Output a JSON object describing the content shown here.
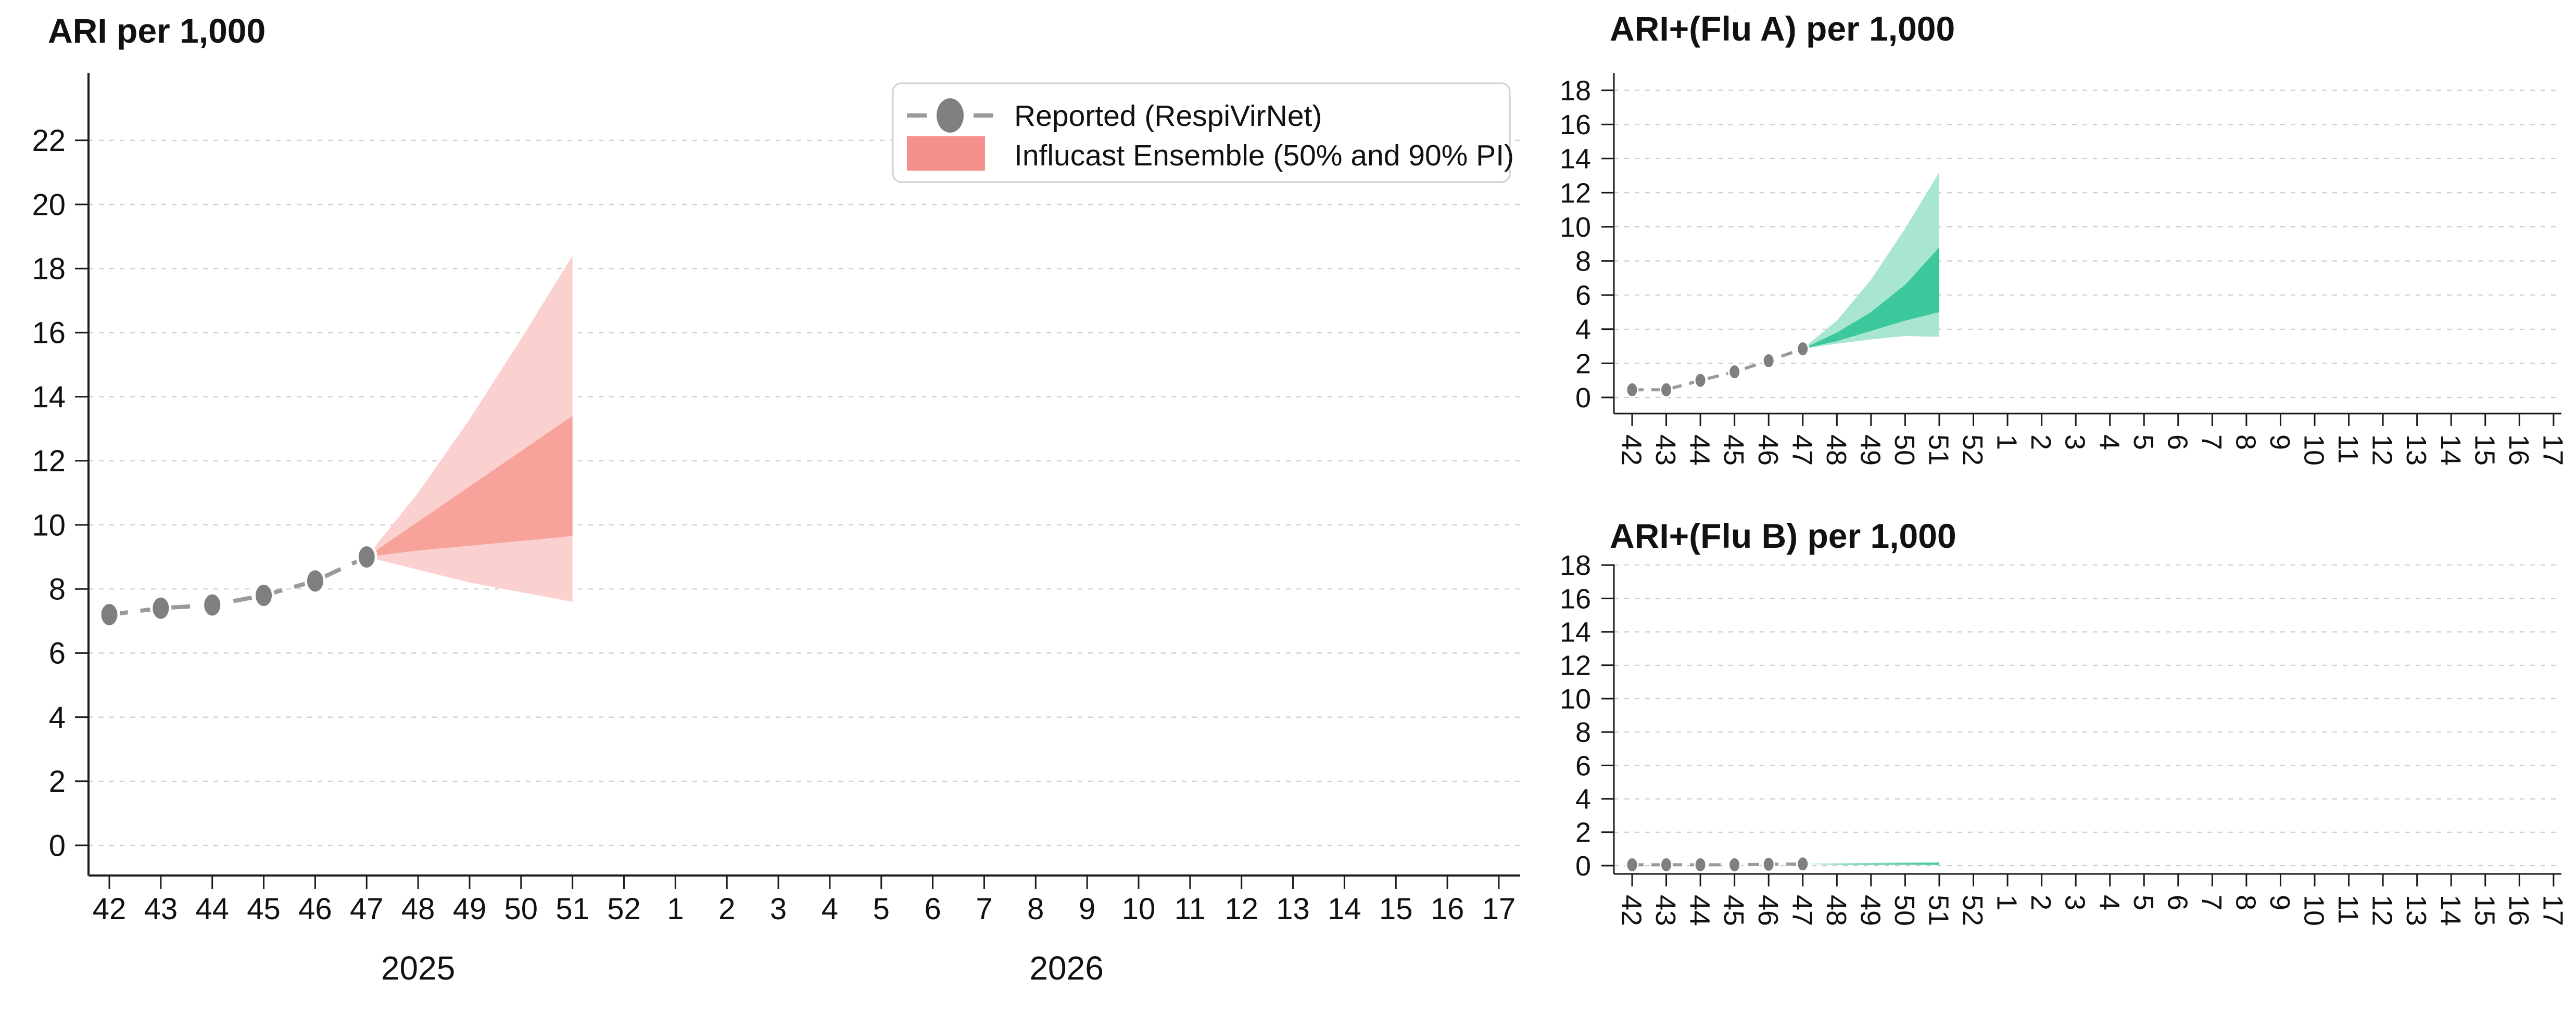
{
  "page": {
    "background": "#ffffff"
  },
  "colors": {
    "reported_dot": "#7f7f7f",
    "reported_line": "#9a9a9a",
    "grid": "#cccccc",
    "axis": "#1a1a1a",
    "tick_text": "#111111",
    "red_band_90": "#fbd1cf",
    "red_band_50": "#f7a29a",
    "legend_swatch": "#f5918c",
    "green_band_90": "#a9e6d0",
    "green_band_50": "#3cc79d"
  },
  "legend": {
    "items": [
      {
        "marker": "dashed-line-with-dot",
        "label": "Reported (RespiVirNet)"
      },
      {
        "marker": "filled-rect",
        "label": "Influcast Ensemble (50% and 90% PI)"
      }
    ]
  },
  "chart_data": [
    {
      "type": "line",
      "title": "ARI per 1,000",
      "categories": [
        "42",
        "43",
        "44",
        "45",
        "46",
        "47",
        "48",
        "49",
        "50",
        "51",
        "52",
        "1",
        "2",
        "3",
        "4",
        "5",
        "6",
        "7",
        "8",
        "9",
        "10",
        "11",
        "12",
        "13",
        "14",
        "15",
        "16",
        "17"
      ],
      "x_years": [
        {
          "label": "2025",
          "center_index": 6.0
        },
        {
          "label": "2026",
          "center_index": 18.6
        }
      ],
      "yticks": [
        0,
        2,
        4,
        6,
        8,
        10,
        12,
        14,
        16,
        18,
        20,
        22
      ],
      "ylim": [
        0,
        24
      ],
      "grid": "dashed-horizontal",
      "legend_position": "top-right-inside",
      "reported": {
        "start_index": 0,
        "values": [
          7.2,
          7.4,
          7.5,
          7.8,
          8.25,
          9.0
        ]
      },
      "forecast": {
        "start_index": 5,
        "weeks": [
          "47",
          "48",
          "49",
          "50",
          "51"
        ],
        "pi90_upper": [
          9.0,
          11.0,
          13.3,
          15.8,
          18.4
        ],
        "pi50_upper": [
          9.0,
          10.1,
          11.2,
          12.3,
          13.4
        ],
        "pi50_lower": [
          9.0,
          9.2,
          9.35,
          9.5,
          9.65
        ],
        "pi90_lower": [
          9.0,
          8.6,
          8.2,
          7.9,
          7.6
        ]
      },
      "band_colors": {
        "outer": "red_band_90",
        "inner": "red_band_50"
      }
    },
    {
      "type": "line",
      "title": "ARI+(Flu A) per 1,000",
      "categories": [
        "42",
        "43",
        "44",
        "45",
        "46",
        "47",
        "48",
        "49",
        "50",
        "51",
        "52",
        "1",
        "2",
        "3",
        "4",
        "5",
        "6",
        "7",
        "8",
        "9",
        "10",
        "11",
        "12",
        "13",
        "14",
        "15",
        "16",
        "17"
      ],
      "x_years": [],
      "yticks": [
        0,
        2,
        4,
        6,
        8,
        10,
        12,
        14,
        16,
        18
      ],
      "ylim": [
        0,
        19
      ],
      "grid": "dashed-horizontal",
      "reported": {
        "start_index": 0,
        "values": [
          0.45,
          0.45,
          1.0,
          1.5,
          2.15,
          2.85
        ]
      },
      "forecast": {
        "start_index": 5,
        "weeks": [
          "47",
          "48",
          "49",
          "50",
          "51"
        ],
        "pi90_upper": [
          2.85,
          4.5,
          6.9,
          9.9,
          13.2
        ],
        "pi50_upper": [
          2.85,
          3.8,
          5.0,
          6.6,
          8.8
        ],
        "pi50_lower": [
          2.85,
          3.3,
          3.9,
          4.5,
          5.0
        ],
        "pi90_lower": [
          2.85,
          3.15,
          3.4,
          3.6,
          3.55
        ]
      },
      "band_colors": {
        "outer": "green_band_90",
        "inner": "green_band_50"
      }
    },
    {
      "type": "line",
      "title": "ARI+(Flu B) per 1,000",
      "categories": [
        "42",
        "43",
        "44",
        "45",
        "46",
        "47",
        "48",
        "49",
        "50",
        "51",
        "52",
        "1",
        "2",
        "3",
        "4",
        "5",
        "6",
        "7",
        "8",
        "9",
        "10",
        "11",
        "12",
        "13",
        "14",
        "15",
        "16",
        "17"
      ],
      "x_years": [],
      "yticks": [
        0,
        2,
        4,
        6,
        8,
        10,
        12,
        14,
        16,
        18
      ],
      "ylim": [
        0,
        19
      ],
      "grid": "dashed-horizontal",
      "reported": {
        "start_index": 0,
        "values": [
          0.05,
          0.05,
          0.05,
          0.05,
          0.08,
          0.1
        ]
      },
      "forecast": {
        "start_index": 5,
        "weeks": [
          "47",
          "48",
          "49",
          "50",
          "51"
        ],
        "pi90_upper": [
          0.1,
          0.13,
          0.16,
          0.2,
          0.22
        ],
        "pi50_upper": [
          0.1,
          0.11,
          0.12,
          0.14,
          0.15
        ],
        "pi50_lower": [
          0.1,
          0.08,
          0.07,
          0.07,
          0.06
        ],
        "pi90_lower": [
          0.1,
          0.05,
          0.04,
          0.04,
          0.03
        ]
      },
      "band_colors": {
        "outer": "green_band_90",
        "inner": "green_band_50"
      }
    }
  ]
}
